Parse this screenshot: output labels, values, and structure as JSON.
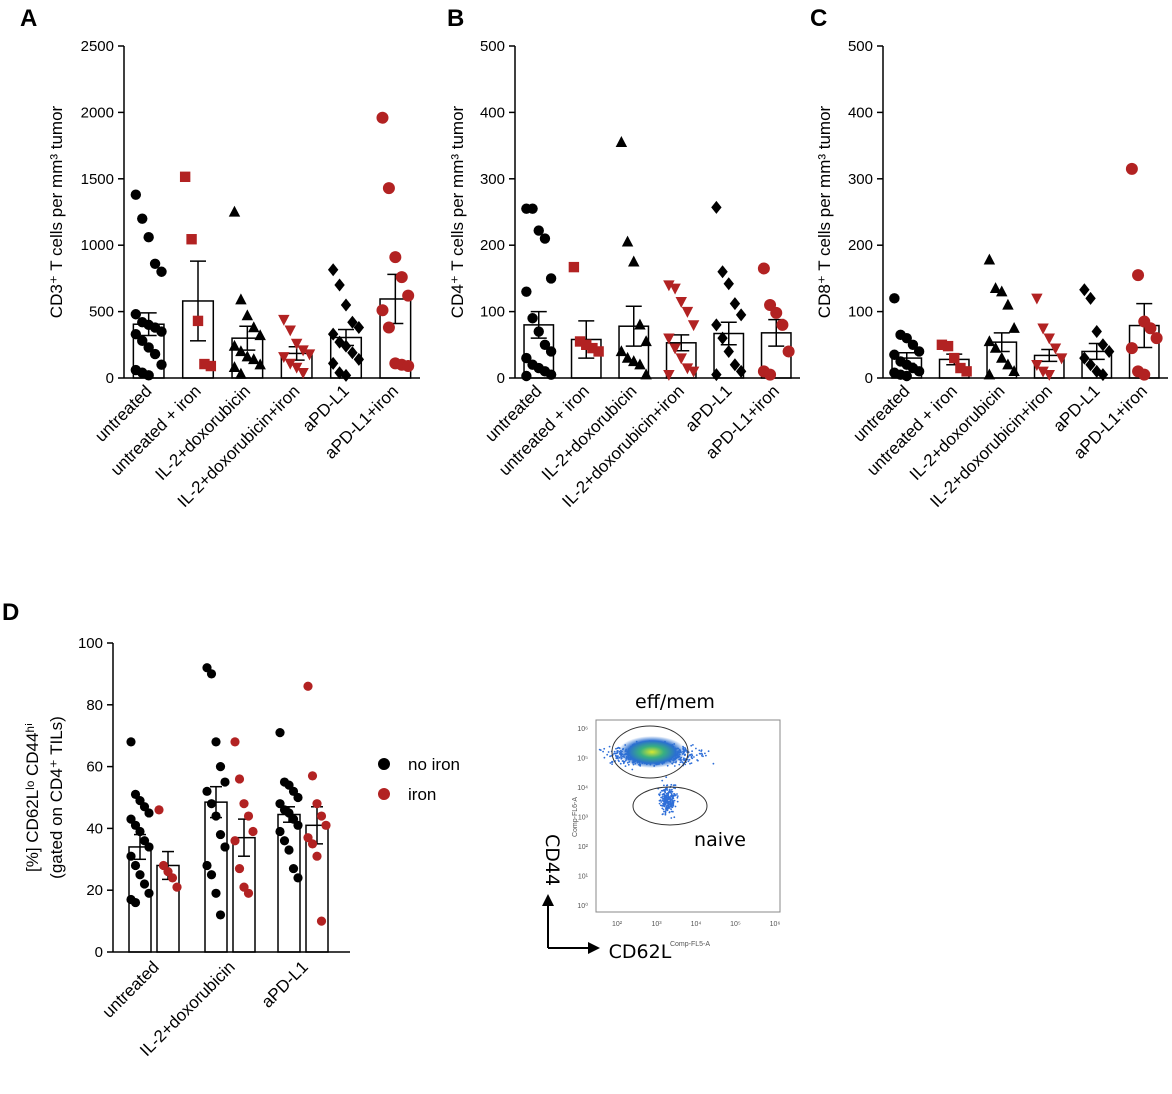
{
  "colors": {
    "black": "#000000",
    "red": "#b22222"
  },
  "chart_data": [
    {
      "type": "bar",
      "panel": "A",
      "ylabel": "CD3⁺ T cells per mm³ tumor",
      "ylim": [
        0,
        2500
      ],
      "yticks": [
        "0",
        "500",
        "1000",
        "1500",
        "2000",
        "2500"
      ],
      "categories": [
        "untreated",
        "untreated + iron",
        "IL-2+doxorubicin",
        "IL-2+doxorubicin+iron",
        "aPD-L1",
        "aPD-L1+iron"
      ],
      "markers": [
        "circle",
        "square",
        "triangle",
        "triangle-down",
        "diamond",
        "circle"
      ],
      "colors": [
        "black",
        "red",
        "black",
        "red",
        "black",
        "red"
      ],
      "means": [
        405,
        580,
        300,
        185,
        305,
        595
      ],
      "sem": [
        85,
        300,
        90,
        50,
        60,
        185
      ],
      "points": [
        [
          1380,
          1200,
          1060,
          860,
          800,
          480,
          420,
          400,
          380,
          350,
          330,
          280,
          230,
          180,
          100,
          60,
          40,
          20
        ],
        [
          1515,
          1045,
          430,
          105,
          90
        ],
        [
          1250,
          590,
          470,
          380,
          320,
          240,
          200,
          160,
          140,
          100,
          80,
          30
        ],
        [
          440,
          360,
          260,
          210,
          180,
          160,
          110,
          80,
          40
        ],
        [
          815,
          700,
          550,
          420,
          380,
          330,
          270,
          240,
          190,
          140,
          110,
          40,
          20
        ],
        [
          1960,
          1430,
          910,
          760,
          620,
          510,
          380,
          110,
          100,
          90
        ]
      ]
    },
    {
      "type": "bar",
      "panel": "B",
      "ylabel": "CD4⁺ T cells per mm³ tumor",
      "ylim": [
        0,
        500
      ],
      "yticks": [
        "0",
        "100",
        "200",
        "300",
        "400",
        "500"
      ],
      "categories": [
        "untreated",
        "untreated + iron",
        "IL-2+doxorubicin",
        "IL-2+doxorubicin+iron",
        "aPD-L1",
        "aPD-L1+iron"
      ],
      "markers": [
        "circle",
        "square",
        "triangle",
        "triangle-down",
        "diamond",
        "circle"
      ],
      "colors": [
        "black",
        "red",
        "black",
        "red",
        "black",
        "red"
      ],
      "means": [
        80,
        58,
        78,
        53,
        67,
        68
      ],
      "sem": [
        20,
        28,
        30,
        12,
        17,
        20
      ],
      "points": [
        [
          255,
          255,
          222,
          210,
          150,
          130,
          90,
          70,
          50,
          40,
          30,
          20,
          15,
          10,
          5,
          3
        ],
        [
          167,
          55,
          50,
          45,
          40
        ],
        [
          355,
          205,
          175,
          80,
          55,
          40,
          30,
          25,
          20,
          5
        ],
        [
          140,
          135,
          115,
          100,
          80,
          60,
          45,
          30,
          15,
          10,
          5
        ],
        [
          257,
          160,
          142,
          112,
          95,
          80,
          60,
          40,
          20,
          10,
          5
        ],
        [
          165,
          110,
          98,
          80,
          40,
          10,
          5
        ]
      ]
    },
    {
      "type": "bar",
      "panel": "C",
      "ylabel": "CD8⁺ T cells per mm³ tumor",
      "ylim": [
        0,
        500
      ],
      "yticks": [
        "0",
        "100",
        "200",
        "300",
        "400",
        "500"
      ],
      "categories": [
        "untreated",
        "untreated + iron",
        "IL-2+doxorubicin",
        "IL-2+doxorubicin+iron",
        "aPD-L1",
        "aPD-L1+iron"
      ],
      "markers": [
        "circle",
        "square",
        "triangle",
        "triangle-down",
        "diamond",
        "circle"
      ],
      "colors": [
        "black",
        "red",
        "black",
        "red",
        "black",
        "red"
      ],
      "means": [
        30,
        28,
        54,
        34,
        40,
        79
      ],
      "sem": [
        8,
        8,
        14,
        9,
        12,
        33
      ],
      "points": [
        [
          120,
          65,
          60,
          50,
          40,
          35,
          25,
          20,
          15,
          10,
          8,
          5,
          3
        ],
        [
          50,
          48,
          30,
          15,
          10
        ],
        [
          178,
          135,
          130,
          110,
          75,
          55,
          45,
          30,
          20,
          10,
          5
        ],
        [
          120,
          75,
          60,
          45,
          30,
          20,
          10,
          5
        ],
        [
          133,
          120,
          70,
          50,
          40,
          30,
          20,
          10,
          5
        ],
        [
          315,
          155,
          85,
          75,
          60,
          45,
          10,
          5
        ]
      ]
    },
    {
      "type": "bar",
      "panel": "D",
      "ylabel": "[%] CD62Lˡᵒ CD44ʰⁱ",
      "ylabel2": "(gated on CD4⁺ TILs)",
      "ylim": [
        0,
        100
      ],
      "yticks": [
        "0",
        "20",
        "40",
        "60",
        "80",
        "100"
      ],
      "categories": [
        "untreated",
        "IL-2+doxorubicin",
        "aPD-L1"
      ],
      "series": [
        {
          "name": "no iron",
          "color": "black",
          "means": [
            34,
            48.5,
            44.5
          ],
          "sem": [
            4,
            5,
            2.5
          ],
          "points": [
            [
              68,
              51,
              49,
              47,
              45,
              43,
              41,
              39,
              36,
              34,
              31,
              28,
              25,
              22,
              19,
              17,
              16
            ],
            [
              92,
              90,
              68,
              60,
              55,
              52,
              48,
              44,
              38,
              34,
              28,
              25,
              19,
              12
            ],
            [
              71,
              55,
              54,
              52,
              50,
              48,
              46,
              45,
              43,
              41,
              39,
              36,
              33,
              27,
              24
            ]
          ]
        },
        {
          "name": "iron",
          "color": "red",
          "means": [
            28,
            37,
            41
          ],
          "sem": [
            4.5,
            6,
            6
          ],
          "points": [
            [
              46,
              28,
              26,
              24,
              21
            ],
            [
              68,
              56,
              48,
              44,
              39,
              36,
              27,
              21,
              19
            ],
            [
              86,
              57,
              48,
              44,
              41,
              37,
              35,
              31,
              10
            ]
          ]
        }
      ]
    }
  ],
  "legend": {
    "items": [
      "no iron",
      "iron"
    ]
  },
  "flow": {
    "gate_top": "eff/mem",
    "gate_bottom": "naive",
    "y_axis": "CD44",
    "x_axis": "CD62L",
    "y_param": "Comp-FL6-A",
    "x_param": "Comp-FL5-A",
    "y_ticks": [
      "10⁰",
      "10¹",
      "10²",
      "10³",
      "10⁴",
      "10⁵",
      "10⁶"
    ],
    "x_ticks": [
      "10²",
      "10³",
      "10⁴",
      "10⁵",
      "10⁶"
    ]
  }
}
